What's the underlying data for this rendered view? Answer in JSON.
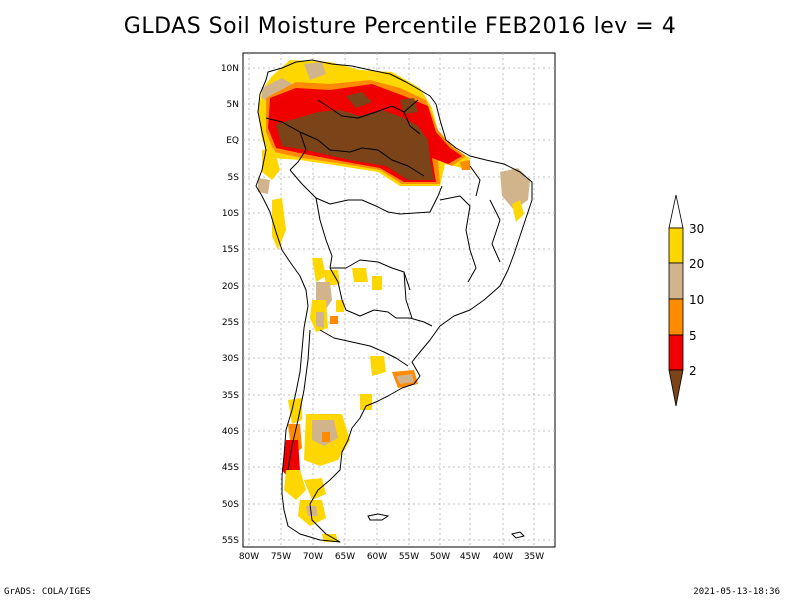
{
  "title": "GLDAS Soil Moisture Percentile FEB2016 lev = 4",
  "footer": {
    "left": "GrADS: COLA/IGES",
    "right": "2021-05-13-18:36"
  },
  "map": {
    "region": "South America",
    "lat_labels": [
      "10N",
      "5N",
      "EQ",
      "5S",
      "10S",
      "15S",
      "20S",
      "25S",
      "30S",
      "35S",
      "40S",
      "45S",
      "50S",
      "55S"
    ],
    "lon_labels": [
      "80W",
      "75W",
      "70W",
      "65W",
      "60W",
      "55W",
      "50W",
      "45W",
      "40W",
      "35W"
    ],
    "grid": true,
    "colors": {
      "land": "#ffffff",
      "below_2": "#7a4418",
      "2_5": "#f00000",
      "5_10": "#ff8c00",
      "10_20": "#d2b48c",
      "20_30": "#ffd700",
      "above_30": "#ffffff"
    }
  },
  "colorbar": {
    "labels": [
      "30",
      "20",
      "10",
      "5",
      "2"
    ],
    "colors": [
      "#ffffff",
      "#ffd700",
      "#d2b48c",
      "#ff8c00",
      "#f00000",
      "#7a4418"
    ]
  }
}
